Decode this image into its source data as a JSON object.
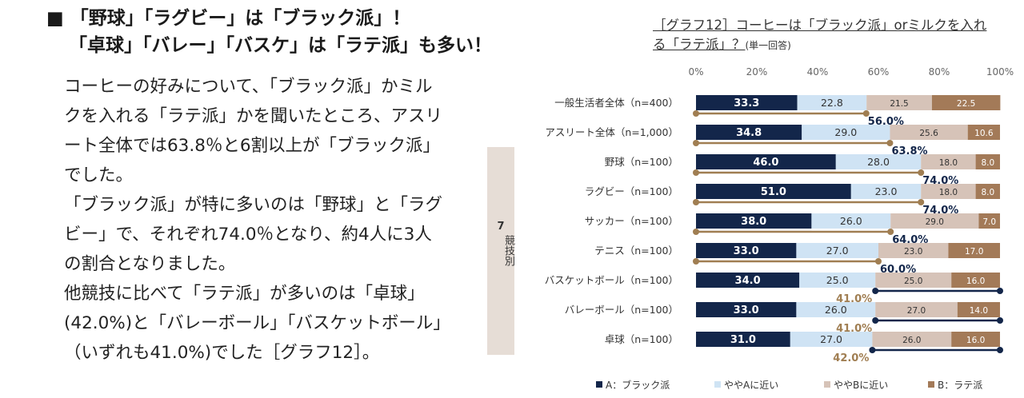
{
  "headline": {
    "line1": "■ 「野球」「ラグビー」は「ブラック派」！",
    "line2": "「卓球」「バレー」「バスケ」は「ラテ派」も多い！"
  },
  "body_paragraphs": [
    "コーヒーの好みについて、「ブラック派」かミルクを入れる「ラテ派」かを聞いたところ、アスリート全体では63.8％と6割以上が「ブラック派」でした。",
    "「ブラック派」が特に多いのは「野球」と「ラグビー」で、それぞれ74.0％となり、約4人に3人の割合となりました。",
    "他競技に比べて「ラテ派」が多いのは「卓球」(42.0%)と「バレーボール」「バスケットボール」（いずれも41.0%)でした［グラフ12］。"
  ],
  "side_tab": {
    "number": "7",
    "label": "競技別"
  },
  "chart_title": {
    "text": "［グラフ12］コーヒーは「ブラック派」orミルクを入れる「ラテ派」？",
    "note": "(単一回答)"
  },
  "colors": {
    "black": "#13264a",
    "near_a": "#cfe3f4",
    "near_b": "#d6c3b8",
    "latte": "#a37a58",
    "brown_text": "#a07e52"
  },
  "chart_data": {
    "type": "bar",
    "orientation": "horizontal-stacked-100",
    "xlim": [
      0,
      100
    ],
    "x_ticks": [
      "0%",
      "20%",
      "40%",
      "60%",
      "80%",
      "100%"
    ],
    "categories": [
      "一般生活者全体（n=400）",
      "アスリート全体（n=1,000）",
      "野球（n=100）",
      "ラグビー（n=100）",
      "サッカー（n=100）",
      "テニス（n=100）",
      "バスケットボール（n=100）",
      "バレーボール（n=100）",
      "卓球（n=100）"
    ],
    "series": [
      {
        "name": "A：ブラック派",
        "values": [
          33.3,
          34.8,
          46.0,
          51.0,
          38.0,
          33.0,
          34.0,
          33.0,
          31.0
        ]
      },
      {
        "name": "ややAに近い",
        "values": [
          22.8,
          29.0,
          28.0,
          23.0,
          26.0,
          27.0,
          25.0,
          26.0,
          27.0
        ]
      },
      {
        "name": "ややBに近い",
        "values": [
          21.5,
          25.6,
          18.0,
          18.0,
          29.0,
          23.0,
          25.0,
          27.0,
          26.0
        ]
      },
      {
        "name": "B：ラテ派",
        "values": [
          22.5,
          10.6,
          8.0,
          8.0,
          7.0,
          17.0,
          16.0,
          14.0,
          16.0
        ]
      }
    ],
    "value_labels": [
      [
        "33.3",
        "22.8",
        "21.5",
        "22.5"
      ],
      [
        "34.8",
        "29.0",
        "25.6",
        "10.6"
      ],
      [
        "46.0",
        "28.0",
        "18.0",
        "8.0"
      ],
      [
        "51.0",
        "23.0",
        "18.0",
        "8.0"
      ],
      [
        "38.0",
        "26.0",
        "29.0",
        "7.0"
      ],
      [
        "33.0",
        "27.0",
        "23.0",
        "17.0"
      ],
      [
        "34.0",
        "25.0",
        "25.0",
        "16.0"
      ],
      [
        "33.0",
        "26.0",
        "27.0",
        "14.0"
      ],
      [
        "31.0",
        "27.0",
        "26.0",
        "16.0"
      ]
    ],
    "summary_brackets": [
      {
        "type": "black",
        "value": 56.0,
        "label": "56.0%"
      },
      {
        "type": "black",
        "value": 63.8,
        "label": "63.8%"
      },
      {
        "type": "black",
        "value": 74.0,
        "label": "74.0%"
      },
      {
        "type": "black",
        "value": 74.0,
        "label": "74.0%"
      },
      {
        "type": "black",
        "value": 64.0,
        "label": "64.0%"
      },
      {
        "type": "black",
        "value": 60.0,
        "label": "60.0%"
      },
      {
        "type": "latte",
        "value": 41.0,
        "label": "41.0%"
      },
      {
        "type": "latte",
        "value": 41.0,
        "label": "41.0%"
      },
      {
        "type": "latte",
        "value": 42.0,
        "label": "42.0%"
      }
    ],
    "legend": [
      "A：ブラック派",
      "ややAに近い",
      "ややBに近い",
      "B：ラテ派"
    ],
    "legend_position": "bottom"
  }
}
